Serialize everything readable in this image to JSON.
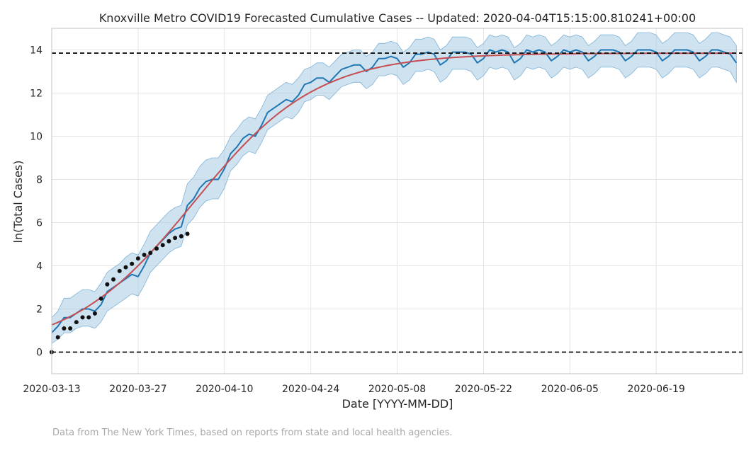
{
  "chart_data": {
    "type": "line",
    "title": "Knoxville Metro COVID19 Forecasted Cumulative Cases -- Updated: 2020-04-04T15:15:00.810241+00:00",
    "xlabel": "Date [YYYY-MM-DD]",
    "ylabel": "ln(Total Cases)",
    "x_start": "2020-03-13",
    "x_end": "2020-07-02",
    "xlim": [
      "2020-03-13",
      "2020-07-03"
    ],
    "ylim": [
      -1,
      15
    ],
    "x_ticks": [
      "2020-03-13",
      "2020-03-27",
      "2020-04-10",
      "2020-04-24",
      "2020-05-08",
      "2020-05-22",
      "2020-06-05",
      "2020-06-19"
    ],
    "y_ticks": [
      0,
      2,
      4,
      6,
      8,
      10,
      12,
      14
    ],
    "grid": true,
    "reference_lines": [
      0,
      13.85
    ],
    "observed": {
      "x": [
        "2020-03-13",
        "2020-03-14",
        "2020-03-15",
        "2020-03-16",
        "2020-03-17",
        "2020-03-18",
        "2020-03-19",
        "2020-03-20",
        "2020-03-21",
        "2020-03-22",
        "2020-03-23",
        "2020-03-24",
        "2020-03-25",
        "2020-03-26",
        "2020-03-27",
        "2020-03-28",
        "2020-03-29",
        "2020-03-30",
        "2020-03-31",
        "2020-04-01",
        "2020-04-02",
        "2020-04-03",
        "2020-04-04"
      ],
      "y": [
        0,
        0.69,
        1.1,
        1.1,
        1.39,
        1.61,
        1.61,
        1.79,
        2.48,
        3.14,
        3.37,
        3.76,
        3.93,
        4.09,
        4.34,
        4.51,
        4.6,
        4.8,
        4.96,
        5.14,
        5.29,
        5.37,
        5.48
      ]
    },
    "forecast_median": [
      0.9,
      1.2,
      1.6,
      1.6,
      1.8,
      2.0,
      2.0,
      1.9,
      2.2,
      2.8,
      3.0,
      3.2,
      3.4,
      3.6,
      3.5,
      4.0,
      4.6,
      4.9,
      5.2,
      5.5,
      5.7,
      5.8,
      6.8,
      7.1,
      7.6,
      7.9,
      8.0,
      8.0,
      8.5,
      9.2,
      9.5,
      9.9,
      10.1,
      10.0,
      10.5,
      11.1,
      11.3,
      11.5,
      11.7,
      11.6,
      11.9,
      12.4,
      12.5,
      12.7,
      12.7,
      12.5,
      12.8,
      13.1,
      13.2,
      13.3,
      13.3,
      13.0,
      13.2,
      13.6,
      13.6,
      13.7,
      13.6,
      13.2,
      13.4,
      13.8,
      13.8,
      13.9,
      13.8,
      13.3,
      13.5,
      13.9,
      13.9,
      13.9,
      13.8,
      13.4,
      13.6,
      14.0,
      13.9,
      14.0,
      13.9,
      13.4,
      13.6,
      14.0,
      13.9,
      14.0,
      13.9,
      13.5,
      13.7,
      14.0,
      13.9,
      14.0,
      13.9,
      13.5,
      13.7,
      14.0,
      14.0,
      14.0,
      13.9,
      13.5,
      13.7,
      14.0,
      14.0,
      14.0,
      13.9,
      13.5,
      13.7,
      14.0,
      14.0,
      14.0,
      13.9,
      13.5,
      13.7,
      14.0,
      14.0,
      13.9,
      13.8,
      13.4
    ],
    "forecast_upper": [
      1.6,
      1.9,
      2.5,
      2.5,
      2.7,
      2.9,
      2.9,
      2.8,
      3.2,
      3.7,
      3.9,
      4.1,
      4.4,
      4.6,
      4.5,
      5.0,
      5.6,
      5.9,
      6.2,
      6.5,
      6.7,
      6.8,
      7.8,
      8.1,
      8.6,
      8.9,
      9.0,
      9.0,
      9.4,
      10.0,
      10.3,
      10.7,
      10.9,
      10.8,
      11.3,
      11.9,
      12.1,
      12.3,
      12.5,
      12.4,
      12.7,
      13.1,
      13.2,
      13.4,
      13.4,
      13.2,
      13.5,
      13.8,
      13.9,
      14.0,
      14.0,
      13.7,
      13.9,
      14.3,
      14.3,
      14.4,
      14.3,
      13.9,
      14.1,
      14.5,
      14.5,
      14.6,
      14.5,
      14.0,
      14.2,
      14.6,
      14.6,
      14.6,
      14.5,
      14.1,
      14.3,
      14.7,
      14.6,
      14.7,
      14.6,
      14.1,
      14.3,
      14.7,
      14.6,
      14.7,
      14.6,
      14.2,
      14.4,
      14.7,
      14.6,
      14.7,
      14.6,
      14.2,
      14.4,
      14.7,
      14.7,
      14.7,
      14.6,
      14.2,
      14.4,
      14.8,
      14.8,
      14.8,
      14.7,
      14.3,
      14.5,
      14.8,
      14.8,
      14.8,
      14.7,
      14.3,
      14.5,
      14.8,
      14.8,
      14.7,
      14.6,
      14.2
    ],
    "forecast_lower": [
      0.4,
      0.6,
      0.9,
      0.9,
      1.1,
      1.2,
      1.2,
      1.1,
      1.4,
      1.9,
      2.1,
      2.3,
      2.5,
      2.7,
      2.6,
      3.1,
      3.7,
      4.0,
      4.3,
      4.6,
      4.8,
      4.9,
      5.9,
      6.2,
      6.7,
      7.0,
      7.1,
      7.1,
      7.6,
      8.4,
      8.7,
      9.1,
      9.3,
      9.2,
      9.7,
      10.3,
      10.5,
      10.7,
      10.9,
      10.8,
      11.1,
      11.6,
      11.7,
      11.9,
      11.9,
      11.7,
      12.0,
      12.3,
      12.4,
      12.5,
      12.5,
      12.2,
      12.4,
      12.8,
      12.8,
      12.9,
      12.8,
      12.4,
      12.6,
      13.0,
      13.0,
      13.1,
      13.0,
      12.5,
      12.7,
      13.1,
      13.1,
      13.1,
      13.0,
      12.6,
      12.8,
      13.2,
      13.1,
      13.2,
      13.1,
      12.6,
      12.8,
      13.2,
      13.1,
      13.2,
      13.1,
      12.7,
      12.9,
      13.2,
      13.1,
      13.2,
      13.1,
      12.7,
      12.9,
      13.2,
      13.2,
      13.2,
      13.1,
      12.7,
      12.9,
      13.2,
      13.2,
      13.2,
      13.1,
      12.7,
      12.9,
      13.2,
      13.2,
      13.2,
      13.1,
      12.7,
      12.9,
      13.2,
      13.2,
      13.1,
      13.0,
      12.5
    ],
    "fit_curve": {
      "type": "logistic",
      "asymptote": 13.85,
      "midpoint": "2020-04-05",
      "rate": 0.1
    },
    "colors": {
      "observed": "#111111",
      "forecast": "#1f77b4",
      "band": "#a6cbe3",
      "fit": "#c44e52",
      "reference": "#111111",
      "grid": "#e5e5e5",
      "spine": "#cccccc"
    },
    "footnote": "Data from The New York Times, based on reports from state and local health agencies."
  }
}
